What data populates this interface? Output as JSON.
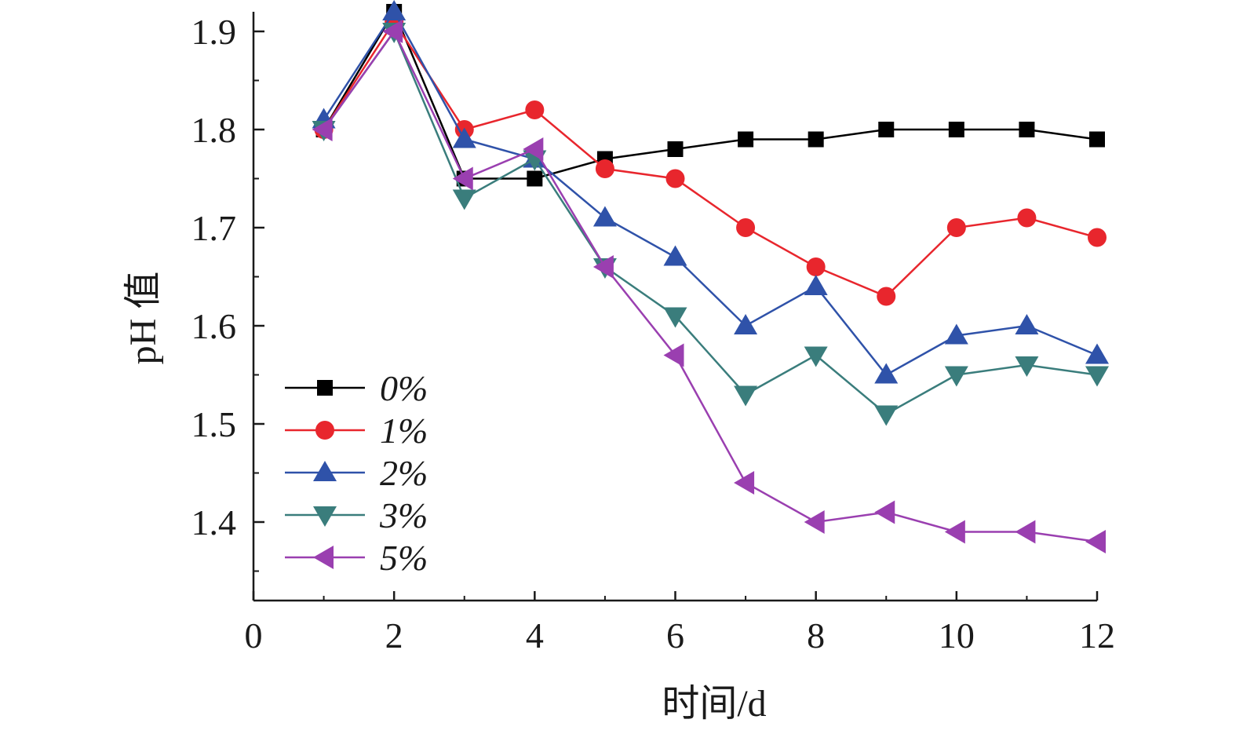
{
  "chart_data": {
    "type": "line",
    "title": "",
    "xlabel": "时间/d",
    "ylabel": "pH 值",
    "xlim": [
      0,
      12
    ],
    "ylim": [
      1.32,
      1.9
    ],
    "x_ticks": [
      "0",
      "2",
      "4",
      "6",
      "8",
      "10",
      "12"
    ],
    "y_ticks": [
      "1.4",
      "1.5",
      "1.6",
      "1.7",
      "1.8",
      "1.9"
    ],
    "grid": false,
    "legend_position": "bottom-left",
    "x": [
      1,
      2,
      3,
      4,
      5,
      6,
      7,
      8,
      9,
      10,
      11,
      12
    ],
    "series": [
      {
        "name": "0%",
        "color": "#000000",
        "marker": "square",
        "values": [
          1.8,
          1.92,
          1.75,
          1.75,
          1.77,
          1.78,
          1.79,
          1.79,
          1.8,
          1.8,
          1.8,
          1.79
        ]
      },
      {
        "name": "1%",
        "color": "#e8262d",
        "marker": "circle",
        "values": [
          1.8,
          1.91,
          1.8,
          1.82,
          1.76,
          1.75,
          1.7,
          1.66,
          1.63,
          1.7,
          1.71,
          1.69
        ]
      },
      {
        "name": "2%",
        "color": "#2f52a9",
        "marker": "triangle-up",
        "values": [
          1.81,
          1.92,
          1.79,
          1.77,
          1.71,
          1.67,
          1.6,
          1.64,
          1.55,
          1.59,
          1.6,
          1.57
        ]
      },
      {
        "name": "3%",
        "color": "#3a7d7c",
        "marker": "triangle-down",
        "values": [
          1.8,
          1.9,
          1.73,
          1.77,
          1.66,
          1.61,
          1.53,
          1.57,
          1.51,
          1.55,
          1.56,
          1.55
        ]
      },
      {
        "name": "5%",
        "color": "#9a3fb0",
        "marker": "triangle-left",
        "values": [
          1.8,
          1.9,
          1.75,
          1.78,
          1.66,
          1.57,
          1.44,
          1.4,
          1.41,
          1.39,
          1.39,
          1.38
        ]
      }
    ]
  }
}
